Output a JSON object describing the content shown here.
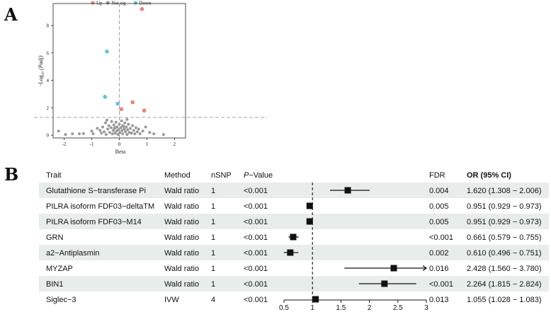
{
  "panels": {
    "a": {
      "letter": "A"
    },
    "b": {
      "letter": "B"
    }
  },
  "chart_data": [
    {
      "type": "scatter",
      "title": "",
      "xlabel": "Beta",
      "ylabel_prefix": "-Log",
      "ylabel_sub": "10",
      "ylabel_suffix": "(Padj)",
      "xlim": [
        -2.4,
        2.4
      ],
      "ylim": [
        -0.2,
        9.6
      ],
      "xticks": [
        -2,
        -1,
        0,
        1,
        2
      ],
      "yticks": [
        0,
        2,
        4,
        6,
        8
      ],
      "threshold_y": 1.3,
      "legend": [
        {
          "label": "Up",
          "color": "#e8837a"
        },
        {
          "label": "Not sig",
          "color": "#999999"
        },
        {
          "label": "Down",
          "color": "#66c2d8"
        }
      ],
      "series": [
        {
          "name": "Up",
          "color": "#e8837a",
          "points": [
            [
              0.82,
              9.2
            ],
            [
              0.48,
              2.4
            ],
            [
              0.9,
              1.8
            ],
            [
              0.07,
              1.9
            ]
          ]
        },
        {
          "name": "Down",
          "color": "#66c2d8",
          "points": [
            [
              -0.45,
              6.1
            ],
            [
              -0.52,
              2.8
            ],
            [
              -0.06,
              2.3
            ]
          ]
        },
        {
          "name": "Not sig",
          "color": "#999999",
          "points": [
            [
              -2.2,
              0.3
            ],
            [
              -1.95,
              0.05
            ],
            [
              -1.7,
              0.1
            ],
            [
              -1.45,
              0.1
            ],
            [
              -1.3,
              0.12
            ],
            [
              -1.0,
              0.3
            ],
            [
              -0.95,
              0.1
            ],
            [
              -0.8,
              0.5
            ],
            [
              -0.7,
              0.35
            ],
            [
              -0.65,
              0.15
            ],
            [
              -0.6,
              0.6
            ],
            [
              -0.55,
              0.25
            ],
            [
              -0.5,
              0.9
            ],
            [
              -0.48,
              0.05
            ],
            [
              -0.42,
              0.45
            ],
            [
              -0.38,
              0.7
            ],
            [
              -0.35,
              0.2
            ],
            [
              -0.3,
              0.55
            ],
            [
              -0.28,
              1.0
            ],
            [
              -0.25,
              0.1
            ],
            [
              -0.22,
              0.35
            ],
            [
              -0.2,
              0.75
            ],
            [
              -0.18,
              0.5
            ],
            [
              -0.15,
              0.15
            ],
            [
              -0.12,
              0.95
            ],
            [
              -0.1,
              0.3
            ],
            [
              -0.08,
              0.6
            ],
            [
              -0.05,
              0.05
            ],
            [
              -0.03,
              0.4
            ],
            [
              0.0,
              0.8
            ],
            [
              0.02,
              0.2
            ],
            [
              0.05,
              0.55
            ],
            [
              0.08,
              1.05
            ],
            [
              0.1,
              0.35
            ],
            [
              0.12,
              0.1
            ],
            [
              0.15,
              0.65
            ],
            [
              0.18,
              0.45
            ],
            [
              0.2,
              0.9
            ],
            [
              0.22,
              0.25
            ],
            [
              0.25,
              0.6
            ],
            [
              0.28,
              0.05
            ],
            [
              0.3,
              0.4
            ],
            [
              0.33,
              0.8
            ],
            [
              0.36,
              0.2
            ],
            [
              0.4,
              0.5
            ],
            [
              0.44,
              0.15
            ],
            [
              0.48,
              0.7
            ],
            [
              0.52,
              0.35
            ],
            [
              0.56,
              0.1
            ],
            [
              0.6,
              0.55
            ],
            [
              0.65,
              0.25
            ],
            [
              0.7,
              0.45
            ],
            [
              0.75,
              0.1
            ],
            [
              0.85,
              0.3
            ],
            [
              0.95,
              0.6
            ],
            [
              1.1,
              0.2
            ],
            [
              1.25,
              0.1
            ],
            [
              1.6,
              0.05
            ],
            [
              -0.45,
              1.1
            ],
            [
              0.28,
              1.15
            ],
            [
              -0.15,
              0.55
            ],
            [
              0.12,
              0.7
            ]
          ]
        }
      ]
    },
    {
      "type": "forest",
      "headers": {
        "trait": "Trait",
        "method": "Method",
        "nsnp": "nSNP",
        "p_italic": "P",
        "p_rest": "−Value",
        "fdr": "FDR",
        "or": "OR (95% CI)"
      },
      "rows": [
        {
          "trait": "Glutathione S−transferase Pi",
          "method": "Wald ratio",
          "nsnp": "1",
          "p": "<0.001",
          "fdr": "0.004",
          "or_text": "1.620 (1.308 − 2.006)",
          "or": 1.62,
          "lo": 1.308,
          "hi": 2.006
        },
        {
          "trait": "PILRA isoform FDF03−deltaTM",
          "method": "Wald ratio",
          "nsnp": "1",
          "p": "<0.001",
          "fdr": "0.005",
          "or_text": "0.951 (0.929 − 0.973)",
          "or": 0.951,
          "lo": 0.929,
          "hi": 0.973
        },
        {
          "trait": "PILRA isoform FDF03−M14",
          "method": "Wald ratio",
          "nsnp": "1",
          "p": "<0.001",
          "fdr": "0.005",
          "or_text": "0.951 (0.929 − 0.973)",
          "or": 0.951,
          "lo": 0.929,
          "hi": 0.973
        },
        {
          "trait": "GRN",
          "method": "Wald ratio",
          "nsnp": "1",
          "p": "<0.001",
          "fdr": "<0.001",
          "or_text": "0.661 (0.579 − 0.755)",
          "or": 0.661,
          "lo": 0.579,
          "hi": 0.755
        },
        {
          "trait": "a2−Antiplasmin",
          "method": "Wald ratio",
          "nsnp": "1",
          "p": "<0.001",
          "fdr": "0.002",
          "or_text": "0.610 (0.496 − 0.751)",
          "or": 0.61,
          "lo": 0.496,
          "hi": 0.751
        },
        {
          "trait": "MYZAP",
          "method": "Wald ratio",
          "nsnp": "1",
          "p": "<0.001",
          "fdr": "0.016",
          "or_text": "2.428 (1.560 − 3.780)",
          "or": 2.428,
          "lo": 1.56,
          "hi": 3.78
        },
        {
          "trait": "BIN1",
          "method": "Wald ratio",
          "nsnp": "1",
          "p": "<0.001",
          "fdr": "<0.001",
          "or_text": "2.264 (1.815 − 2.824)",
          "or": 2.264,
          "lo": 1.815,
          "hi": 2.824
        },
        {
          "trait": "Siglec−3",
          "method": "IVW",
          "nsnp": "4",
          "p": "<0.001",
          "fdr": "0.013",
          "or_text": "1.055 (1.028 − 1.083)",
          "or": 1.055,
          "lo": 1.028,
          "hi": 1.083
        }
      ],
      "xlim": [
        0.5,
        3
      ],
      "xticks": [
        "0.5",
        "1",
        "1.5",
        "2",
        "2.5",
        "3"
      ],
      "reference_line": 1,
      "row_shading": "#e8edeb"
    }
  ]
}
